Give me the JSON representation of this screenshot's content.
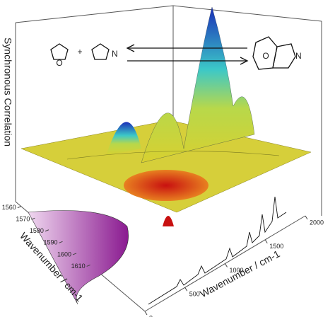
{
  "chart_data": {
    "type": "surface3d",
    "z_label": "Synchronous Correlation",
    "x_label": "Wavenumber / cm-1",
    "y_label": "Wavenumber / cm-1",
    "xlim": [
      0,
      2000
    ],
    "xticks": [
      0,
      500,
      1000,
      1500,
      2000
    ],
    "ylim": [
      1556,
      1614
    ],
    "yticks": [
      1560,
      1570,
      1580,
      1590,
      1600,
      1610
    ],
    "scheme": {
      "plus": "+",
      "n_left": "N",
      "n_right": "N",
      "o_left": "O",
      "o_right": "O"
    }
  }
}
